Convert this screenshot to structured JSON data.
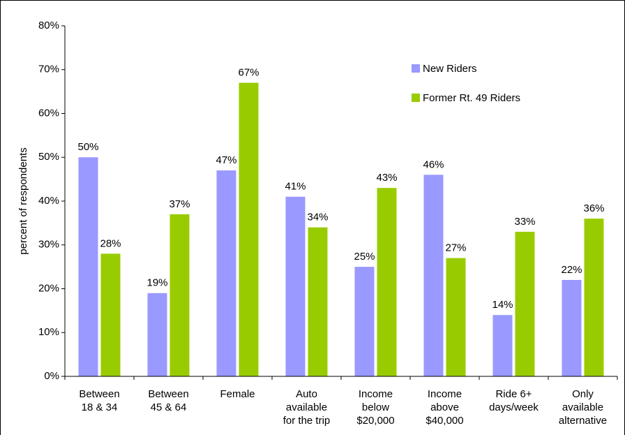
{
  "chart_data": {
    "type": "bar",
    "y_label": "percent of respondents",
    "categories": [
      [
        "Between",
        "18 & 34"
      ],
      [
        "Between",
        "45 & 64"
      ],
      [
        "Female"
      ],
      [
        "Auto",
        "available",
        "for the trip"
      ],
      [
        "Income",
        "below",
        "$20,000"
      ],
      [
        "Income",
        "above",
        "$40,000"
      ],
      [
        "Ride 6+",
        "days/week"
      ],
      [
        "Only",
        "available",
        "alternative"
      ]
    ],
    "series": [
      {
        "name": "New Riders",
        "color": "#9999ff",
        "values": [
          50,
          19,
          47,
          41,
          25,
          46,
          14,
          22
        ],
        "value_labels": [
          "50%",
          "19%",
          "47%",
          "41%",
          "25%",
          "46%",
          "14%",
          "22%"
        ]
      },
      {
        "name": "Former Rt. 49 Riders",
        "color": "#99cc00",
        "values": [
          28,
          37,
          67,
          34,
          43,
          27,
          33,
          36
        ],
        "value_labels": [
          "28%",
          "37%",
          "67%",
          "34%",
          "43%",
          "27%",
          "33%",
          "36%"
        ]
      }
    ],
    "ylim": [
      0,
      80
    ],
    "yticks": [
      {
        "value": 0,
        "label": "0%"
      },
      {
        "value": 10,
        "label": "10%"
      },
      {
        "value": 20,
        "label": "20%"
      },
      {
        "value": 30,
        "label": "30%"
      },
      {
        "value": 40,
        "label": "40%"
      },
      {
        "value": 50,
        "label": "50%"
      },
      {
        "value": 60,
        "label": "60%"
      },
      {
        "value": 70,
        "label": "70%"
      },
      {
        "value": 80,
        "label": "80%"
      }
    ],
    "grid": false,
    "legend": "top-right"
  }
}
